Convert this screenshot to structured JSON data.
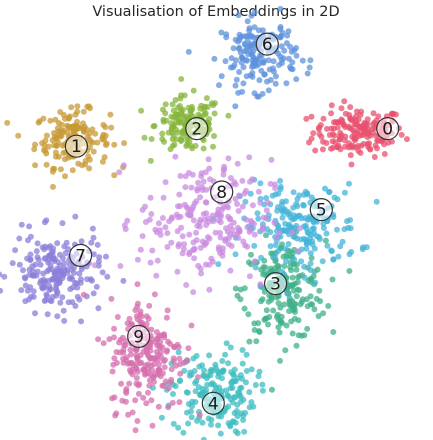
{
  "chart_data": {
    "type": "scatter",
    "title": "Visualisation of Embeddings in 2D",
    "xlabel": "",
    "ylabel": "",
    "xlim": [
      0,
      100
    ],
    "ylim": [
      0,
      100
    ],
    "axes_visible": false,
    "grid": false,
    "legend": "none",
    "series": [
      {
        "label": "0",
        "color": "#e8506e",
        "center": [
          84,
          86
        ],
        "spread": [
          5.5,
          3.5
        ],
        "count": 170
      },
      {
        "label": "1",
        "color": "#c79a36",
        "center": [
          15,
          84
        ],
        "spread": [
          4.5,
          4.0
        ],
        "count": 160
      },
      {
        "label": "2",
        "color": "#86b63a",
        "center": [
          43,
          88
        ],
        "spread": [
          4.0,
          4.0
        ],
        "count": 150
      },
      {
        "label": "3",
        "color": "#3fb08a",
        "center": [
          66,
          41
        ],
        "spread": [
          5.0,
          7.0
        ],
        "count": 200
      },
      {
        "label": "4",
        "color": "#3dbcc0",
        "center": [
          49,
          12
        ],
        "spread": [
          5.0,
          6.0
        ],
        "count": 190
      },
      {
        "label": "5",
        "color": "#44b4d8",
        "center": [
          70,
          59
        ],
        "spread": [
          7.0,
          6.0
        ],
        "count": 200
      },
      {
        "label": "6",
        "color": "#5e91dc",
        "center": [
          60,
          108
        ],
        "spread": [
          4.5,
          5.0
        ],
        "count": 170
      },
      {
        "label": "7",
        "color": "#8a7fd9",
        "center": [
          11,
          46
        ],
        "spread": [
          5.5,
          5.5
        ],
        "count": 200
      },
      {
        "label": "8",
        "color": "#c98ce0",
        "center": [
          47,
          61
        ],
        "spread": [
          8.0,
          8.5
        ],
        "count": 230
      },
      {
        "label": "9",
        "color": "#d66fae",
        "center": [
          33,
          23
        ],
        "spread": [
          4.5,
          8.0
        ],
        "count": 220
      }
    ],
    "label_positions": [
      {
        "text": "0",
        "at": [
          91,
          87
        ]
      },
      {
        "text": "1",
        "at": [
          16,
          82
        ]
      },
      {
        "text": "2",
        "at": [
          45,
          87
        ]
      },
      {
        "text": "3",
        "at": [
          64,
          43
        ]
      },
      {
        "text": "4",
        "at": [
          49,
          9
        ]
      },
      {
        "text": "5",
        "at": [
          75,
          64
        ]
      },
      {
        "text": "6",
        "at": [
          62,
          111
        ]
      },
      {
        "text": "7",
        "at": [
          17,
          51
        ]
      },
      {
        "text": "8",
        "at": [
          51,
          69
        ]
      },
      {
        "text": "9",
        "at": [
          31,
          28
        ]
      }
    ]
  }
}
